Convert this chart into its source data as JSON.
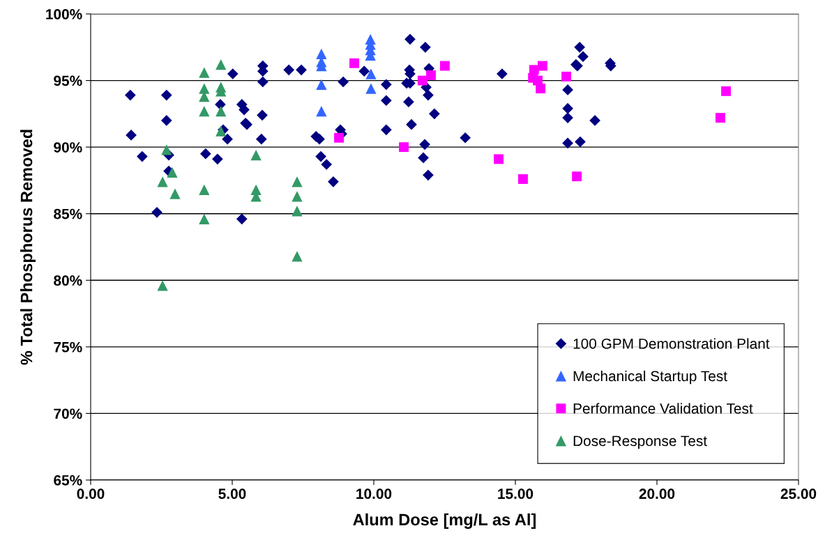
{
  "chart_data": {
    "type": "scatter",
    "xlabel": "Alum Dose [mg/L as Al]",
    "ylabel": "% Total Phosphorus Removed",
    "xlim": [
      0,
      25
    ],
    "xticks": [
      {
        "value": 0,
        "label": "0.00"
      },
      {
        "value": 5,
        "label": "5.00"
      },
      {
        "value": 10,
        "label": "10.00"
      },
      {
        "value": 15,
        "label": "15.00"
      },
      {
        "value": 20,
        "label": "20.00"
      },
      {
        "value": 25,
        "label": "25.00"
      }
    ],
    "ylim": [
      65,
      100
    ],
    "yticks": [
      {
        "value": 65,
        "label": "65%"
      },
      {
        "value": 70,
        "label": "70%"
      },
      {
        "value": 75,
        "label": "75%"
      },
      {
        "value": 80,
        "label": "80%"
      },
      {
        "value": 85,
        "label": "85%"
      },
      {
        "value": 90,
        "label": "90%"
      },
      {
        "value": 95,
        "label": "95%"
      },
      {
        "value": 100,
        "label": "100%"
      }
    ],
    "grid": "y",
    "legend": "bottom right",
    "series": [
      {
        "name": "100 GPM Demonstration Plant",
        "color": "#000080",
        "marker": "diamond",
        "x": [
          1.4,
          1.43,
          1.82,
          2.34,
          2.68,
          2.68,
          2.76,
          2.76,
          4.58,
          4.83,
          4.68,
          4.06,
          4.48,
          5.02,
          5.34,
          5.34,
          5.42,
          5.47,
          5.52,
          6.06,
          6.03,
          6.08,
          6.08,
          6.08,
          7.0,
          7.44,
          7.96,
          8.08,
          8.13,
          8.33,
          8.57,
          8.82,
          8.87,
          8.92,
          9.66,
          10.44,
          10.44,
          10.44,
          11.26,
          11.28,
          11.16,
          11.28,
          11.23,
          11.33,
          11.28,
          11.95,
          11.85,
          11.92,
          12.14,
          11.8,
          11.75,
          11.92,
          11.82,
          13.23,
          14.53,
          16.85,
          16.85,
          16.85,
          16.85,
          17.29,
          17.81,
          17.19,
          18.37,
          17.27,
          17.39,
          17.14,
          18.35
        ],
        "values": [
          93.9,
          90.9,
          89.3,
          85.1,
          93.9,
          92.0,
          89.4,
          88.2,
          93.2,
          90.6,
          91.3,
          89.5,
          89.1,
          95.5,
          84.6,
          93.2,
          92.8,
          91.8,
          91.7,
          92.4,
          90.6,
          94.9,
          95.7,
          96.1,
          95.8,
          95.8,
          90.8,
          90.6,
          89.3,
          88.7,
          87.4,
          91.3,
          91.0,
          94.9,
          95.7,
          94.7,
          93.5,
          91.3,
          95.8,
          95.5,
          94.8,
          94.8,
          93.4,
          91.7,
          98.1,
          95.9,
          94.5,
          93.9,
          92.5,
          90.2,
          89.2,
          87.9,
          97.5,
          90.7,
          95.5,
          94.3,
          92.9,
          92.2,
          90.3,
          90.4,
          92.0,
          96.1,
          96.1,
          97.5,
          96.8,
          96.2,
          96.3
        ]
      },
      {
        "name": "Mechanical Startup Test",
        "color": "#3366ff",
        "marker": "triangle",
        "x": [
          8.15,
          8.15,
          8.15,
          8.15,
          8.15,
          9.88,
          9.88,
          9.88,
          9.88,
          9.9,
          9.9
        ],
        "values": [
          96.1,
          94.7,
          92.7,
          97.0,
          96.4,
          98.1,
          97.7,
          97.3,
          96.9,
          95.5,
          94.4
        ]
      },
      {
        "name": "Performance Validation Test",
        "color": "#ff00ff",
        "marker": "square",
        "x": [
          9.31,
          8.77,
          14.41,
          15.27,
          17.17,
          11.06,
          11.72,
          12.02,
          12.51,
          15.66,
          15.62,
          15.79,
          15.89,
          15.96,
          16.8,
          22.44,
          22.24
        ],
        "values": [
          96.3,
          90.7,
          89.1,
          87.6,
          87.8,
          90.0,
          95.0,
          95.4,
          96.1,
          95.8,
          95.2,
          95.0,
          94.4,
          96.1,
          95.3,
          94.2,
          92.2
        ]
      },
      {
        "name": "Dose-Response Test",
        "color": "#339966",
        "marker": "triangle",
        "x": [
          4.01,
          4.01,
          4.01,
          4.01,
          4.6,
          4.6,
          4.6,
          4.6,
          4.6,
          2.68,
          2.88,
          2.54,
          2.98,
          4.01,
          4.01,
          5.84,
          5.84,
          5.84,
          7.29,
          7.29,
          7.29,
          7.29,
          2.54
        ],
        "values": [
          95.6,
          94.4,
          93.8,
          92.7,
          96.2,
          94.5,
          94.2,
          92.7,
          91.2,
          89.8,
          88.1,
          87.4,
          86.5,
          86.8,
          84.6,
          89.4,
          86.8,
          86.3,
          87.4,
          86.3,
          85.2,
          81.8,
          79.6
        ]
      }
    ]
  }
}
